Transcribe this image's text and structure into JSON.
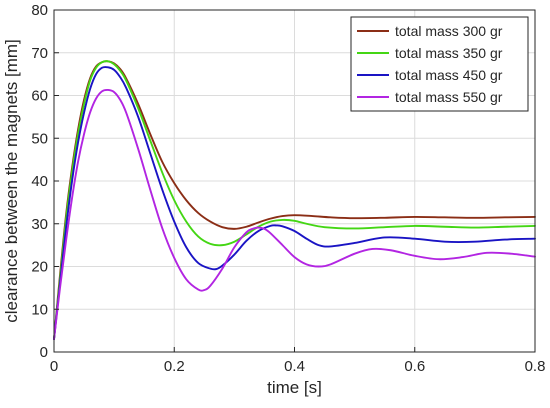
{
  "chart_data": {
    "type": "line",
    "title": "",
    "xlabel": "time [s]",
    "ylabel": "clearance between the magnets [mm]",
    "xlim": [
      0,
      0.8
    ],
    "ylim": [
      0,
      80
    ],
    "xticks": [
      0,
      0.2,
      0.4,
      0.6,
      0.8
    ],
    "xtick_labels": [
      "0",
      "0.2",
      "0.4",
      "0.6",
      "0.8"
    ],
    "yticks": [
      0,
      10,
      20,
      30,
      40,
      50,
      60,
      70,
      80
    ],
    "ytick_labels": [
      "0",
      "10",
      "20",
      "30",
      "40",
      "50",
      "60",
      "70",
      "80"
    ],
    "grid": true,
    "legend_position": "top-right",
    "series": [
      {
        "name": "total mass 300 gr",
        "color": "#8B2E16",
        "points": [
          [
            0,
            3
          ],
          [
            0.01,
            18
          ],
          [
            0.02,
            32
          ],
          [
            0.03,
            43
          ],
          [
            0.04,
            52
          ],
          [
            0.05,
            59
          ],
          [
            0.06,
            64
          ],
          [
            0.07,
            66.8
          ],
          [
            0.08,
            67.8
          ],
          [
            0.09,
            68
          ],
          [
            0.1,
            67.5
          ],
          [
            0.11,
            66.2
          ],
          [
            0.12,
            64
          ],
          [
            0.14,
            58
          ],
          [
            0.16,
            51
          ],
          [
            0.18,
            44.5
          ],
          [
            0.2,
            39.5
          ],
          [
            0.22,
            35.5
          ],
          [
            0.24,
            32.5
          ],
          [
            0.26,
            30.5
          ],
          [
            0.28,
            29.2
          ],
          [
            0.3,
            28.8
          ],
          [
            0.32,
            29.3
          ],
          [
            0.34,
            30.3
          ],
          [
            0.36,
            31.2
          ],
          [
            0.38,
            31.8
          ],
          [
            0.4,
            32
          ],
          [
            0.43,
            31.8
          ],
          [
            0.46,
            31.5
          ],
          [
            0.5,
            31.3
          ],
          [
            0.55,
            31.4
          ],
          [
            0.6,
            31.6
          ],
          [
            0.65,
            31.5
          ],
          [
            0.7,
            31.4
          ],
          [
            0.75,
            31.5
          ],
          [
            0.8,
            31.6
          ]
        ]
      },
      {
        "name": "total mass 350 gr",
        "color": "#44D614",
        "points": [
          [
            0,
            3
          ],
          [
            0.01,
            17
          ],
          [
            0.02,
            31
          ],
          [
            0.03,
            42
          ],
          [
            0.04,
            51
          ],
          [
            0.05,
            58
          ],
          [
            0.06,
            63.5
          ],
          [
            0.07,
            66.5
          ],
          [
            0.08,
            67.8
          ],
          [
            0.09,
            68
          ],
          [
            0.1,
            67.3
          ],
          [
            0.11,
            65.8
          ],
          [
            0.12,
            63.5
          ],
          [
            0.14,
            57
          ],
          [
            0.16,
            49.5
          ],
          [
            0.18,
            42
          ],
          [
            0.2,
            35.5
          ],
          [
            0.22,
            30.5
          ],
          [
            0.24,
            27
          ],
          [
            0.26,
            25.3
          ],
          [
            0.28,
            25
          ],
          [
            0.3,
            25.8
          ],
          [
            0.32,
            27.5
          ],
          [
            0.34,
            29.3
          ],
          [
            0.36,
            30.5
          ],
          [
            0.38,
            30.9
          ],
          [
            0.4,
            30.7
          ],
          [
            0.42,
            30
          ],
          [
            0.45,
            29.2
          ],
          [
            0.5,
            28.9
          ],
          [
            0.55,
            29.2
          ],
          [
            0.6,
            29.5
          ],
          [
            0.65,
            29.3
          ],
          [
            0.7,
            29.1
          ],
          [
            0.75,
            29.3
          ],
          [
            0.8,
            29.5
          ]
        ]
      },
      {
        "name": "total mass 450 gr",
        "color": "#1A14C4",
        "points": [
          [
            0,
            3
          ],
          [
            0.01,
            16
          ],
          [
            0.02,
            29
          ],
          [
            0.03,
            40
          ],
          [
            0.04,
            49
          ],
          [
            0.05,
            56
          ],
          [
            0.06,
            61.5
          ],
          [
            0.07,
            65
          ],
          [
            0.08,
            66.5
          ],
          [
            0.09,
            66.6
          ],
          [
            0.1,
            66
          ],
          [
            0.11,
            64.3
          ],
          [
            0.12,
            61.8
          ],
          [
            0.14,
            55
          ],
          [
            0.16,
            46.5
          ],
          [
            0.18,
            38
          ],
          [
            0.2,
            30.5
          ],
          [
            0.22,
            24.5
          ],
          [
            0.24,
            20.8
          ],
          [
            0.26,
            19.5
          ],
          [
            0.27,
            19.4
          ],
          [
            0.28,
            20.2
          ],
          [
            0.3,
            22.8
          ],
          [
            0.32,
            26
          ],
          [
            0.34,
            28.3
          ],
          [
            0.36,
            29.5
          ],
          [
            0.37,
            29.6
          ],
          [
            0.38,
            29.4
          ],
          [
            0.4,
            28.3
          ],
          [
            0.42,
            26.5
          ],
          [
            0.44,
            25
          ],
          [
            0.46,
            24.7
          ],
          [
            0.5,
            25.5
          ],
          [
            0.55,
            26.8
          ],
          [
            0.6,
            26.5
          ],
          [
            0.65,
            25.8
          ],
          [
            0.7,
            25.8
          ],
          [
            0.75,
            26.3
          ],
          [
            0.8,
            26.5
          ]
        ]
      },
      {
        "name": "total mass 550 gr",
        "color": "#B225E2",
        "points": [
          [
            0,
            3
          ],
          [
            0.01,
            15
          ],
          [
            0.02,
            26
          ],
          [
            0.03,
            36
          ],
          [
            0.04,
            44.5
          ],
          [
            0.05,
            51
          ],
          [
            0.06,
            56
          ],
          [
            0.07,
            59.3
          ],
          [
            0.08,
            61
          ],
          [
            0.09,
            61.3
          ],
          [
            0.1,
            60.8
          ],
          [
            0.11,
            59
          ],
          [
            0.12,
            56
          ],
          [
            0.14,
            47.5
          ],
          [
            0.16,
            38
          ],
          [
            0.18,
            29
          ],
          [
            0.2,
            22
          ],
          [
            0.22,
            17
          ],
          [
            0.24,
            14.6
          ],
          [
            0.25,
            14.5
          ],
          [
            0.26,
            15.5
          ],
          [
            0.28,
            19.5
          ],
          [
            0.3,
            24.5
          ],
          [
            0.32,
            28
          ],
          [
            0.33,
            28.8
          ],
          [
            0.34,
            29.1
          ],
          [
            0.35,
            28.8
          ],
          [
            0.36,
            27.8
          ],
          [
            0.38,
            25
          ],
          [
            0.4,
            22.2
          ],
          [
            0.42,
            20.5
          ],
          [
            0.44,
            20
          ],
          [
            0.46,
            20.5
          ],
          [
            0.5,
            23
          ],
          [
            0.53,
            24.1
          ],
          [
            0.56,
            23.8
          ],
          [
            0.6,
            22.5
          ],
          [
            0.64,
            21.7
          ],
          [
            0.68,
            22.2
          ],
          [
            0.72,
            23.2
          ],
          [
            0.76,
            23
          ],
          [
            0.8,
            22.3
          ]
        ]
      }
    ]
  }
}
